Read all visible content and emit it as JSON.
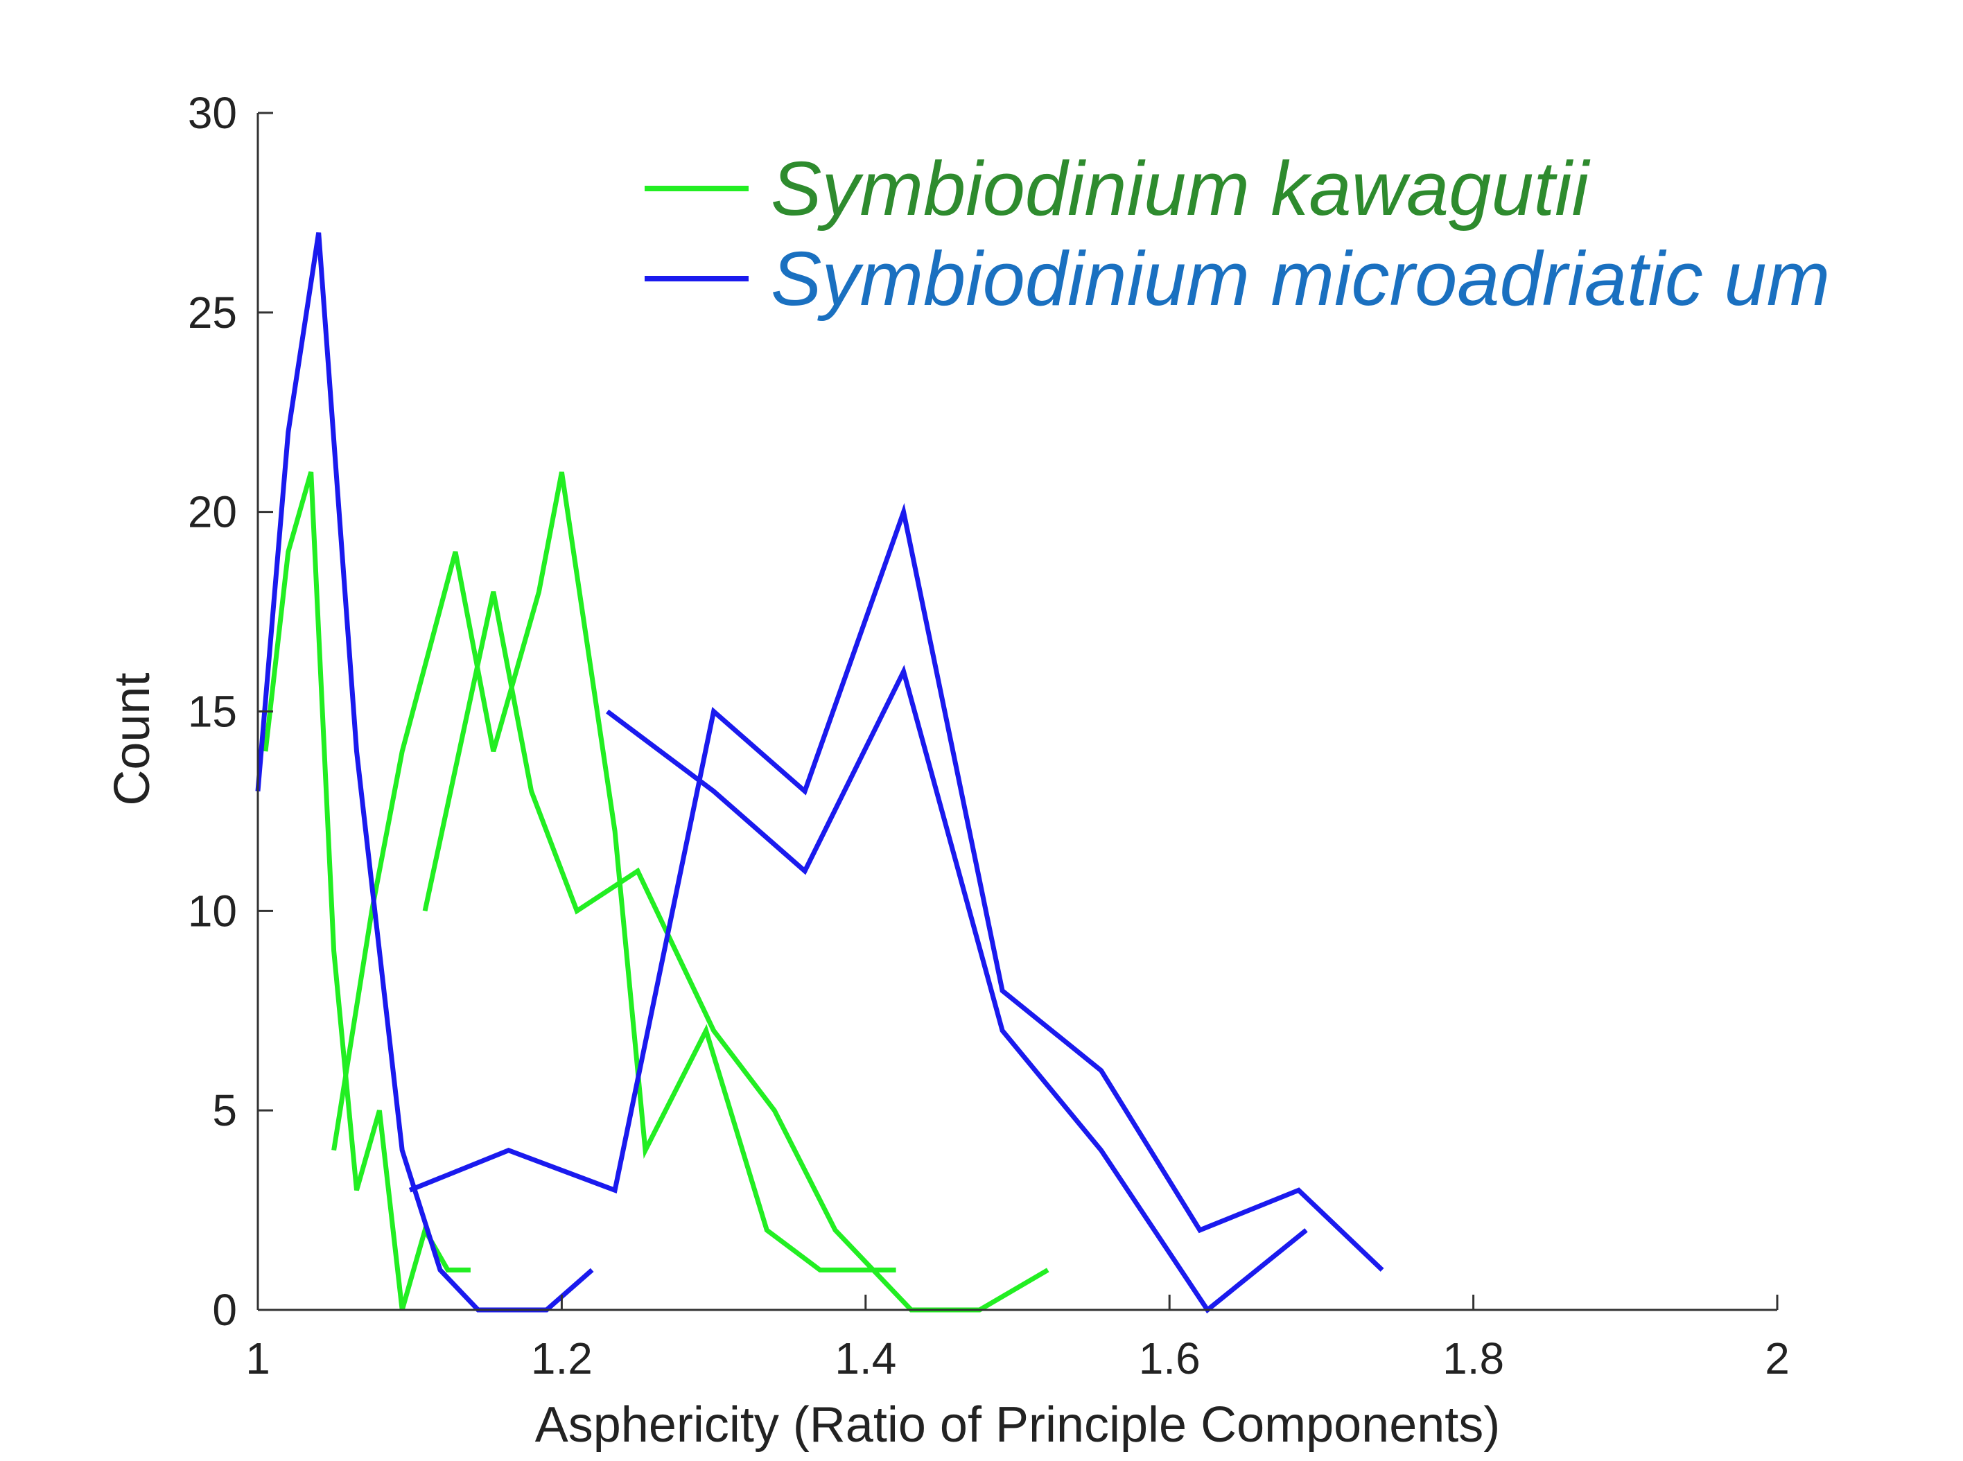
{
  "chart_data": {
    "type": "line",
    "xlabel": "Asphericity (Ratio of Principle Components)",
    "ylabel": "Count",
    "xlim": [
      1,
      2
    ],
    "ylim": [
      0,
      30
    ],
    "xticks": [
      "1",
      "1.2",
      "1.4",
      "1.6",
      "1.8",
      "2"
    ],
    "yticks": [
      "0",
      "5",
      "10",
      "15",
      "20",
      "25",
      "30"
    ],
    "grid": false,
    "legend_position": "top-right",
    "series": [
      {
        "name": "Symbiodinium kawagutii",
        "color": "#22ee22",
        "label_color": "#2e8b2e",
        "show_in_legend": true,
        "points": [
          [
            1.005,
            14
          ],
          [
            1.02,
            19
          ],
          [
            1.035,
            21
          ],
          [
            1.05,
            9
          ],
          [
            1.065,
            3
          ],
          [
            1.08,
            5
          ],
          [
            1.095,
            0
          ],
          [
            1.11,
            2
          ],
          [
            1.125,
            1
          ],
          [
            1.14,
            1
          ]
        ]
      },
      {
        "name": "",
        "color": "#22ee22",
        "show_in_legend": false,
        "points": [
          [
            1.05,
            4
          ],
          [
            1.075,
            10
          ],
          [
            1.095,
            14
          ],
          [
            1.13,
            19
          ],
          [
            1.155,
            14
          ],
          [
            1.185,
            18
          ],
          [
            1.2,
            21
          ],
          [
            1.235,
            12
          ],
          [
            1.255,
            4
          ],
          [
            1.295,
            7
          ],
          [
            1.335,
            2
          ],
          [
            1.37,
            1
          ],
          [
            1.42,
            1
          ]
        ]
      },
      {
        "name": "",
        "color": "#22ee22",
        "show_in_legend": false,
        "points": [
          [
            1.11,
            10
          ],
          [
            1.155,
            18
          ],
          [
            1.18,
            13
          ],
          [
            1.21,
            10
          ],
          [
            1.25,
            11
          ],
          [
            1.3,
            7
          ],
          [
            1.34,
            5
          ],
          [
            1.38,
            2
          ],
          [
            1.43,
            0
          ],
          [
            1.475,
            0
          ],
          [
            1.52,
            1
          ]
        ]
      },
      {
        "name": "Symbiodinium microadriatic um",
        "color": "#1a1aee",
        "label_color": "#1a70c0",
        "show_in_legend": true,
        "points": [
          [
            1.0,
            13
          ],
          [
            1.02,
            22
          ],
          [
            1.04,
            27
          ],
          [
            1.065,
            14
          ],
          [
            1.095,
            4
          ],
          [
            1.12,
            1
          ],
          [
            1.145,
            0
          ],
          [
            1.19,
            0
          ],
          [
            1.22,
            1
          ]
        ]
      },
      {
        "name": "",
        "color": "#1a1aee",
        "show_in_legend": false,
        "points": [
          [
            1.1,
            3
          ],
          [
            1.165,
            4
          ],
          [
            1.235,
            3
          ],
          [
            1.3,
            15
          ],
          [
            1.36,
            13
          ],
          [
            1.425,
            20
          ],
          [
            1.49,
            8
          ],
          [
            1.555,
            6
          ],
          [
            1.62,
            2
          ],
          [
            1.685,
            3
          ],
          [
            1.74,
            1
          ]
        ]
      },
      {
        "name": "",
        "color": "#1a1aee",
        "show_in_legend": false,
        "points": [
          [
            1.23,
            15
          ],
          [
            1.3,
            13
          ],
          [
            1.36,
            11
          ],
          [
            1.425,
            16
          ],
          [
            1.49,
            7
          ],
          [
            1.555,
            4
          ],
          [
            1.625,
            0
          ],
          [
            1.69,
            2
          ]
        ]
      }
    ]
  }
}
